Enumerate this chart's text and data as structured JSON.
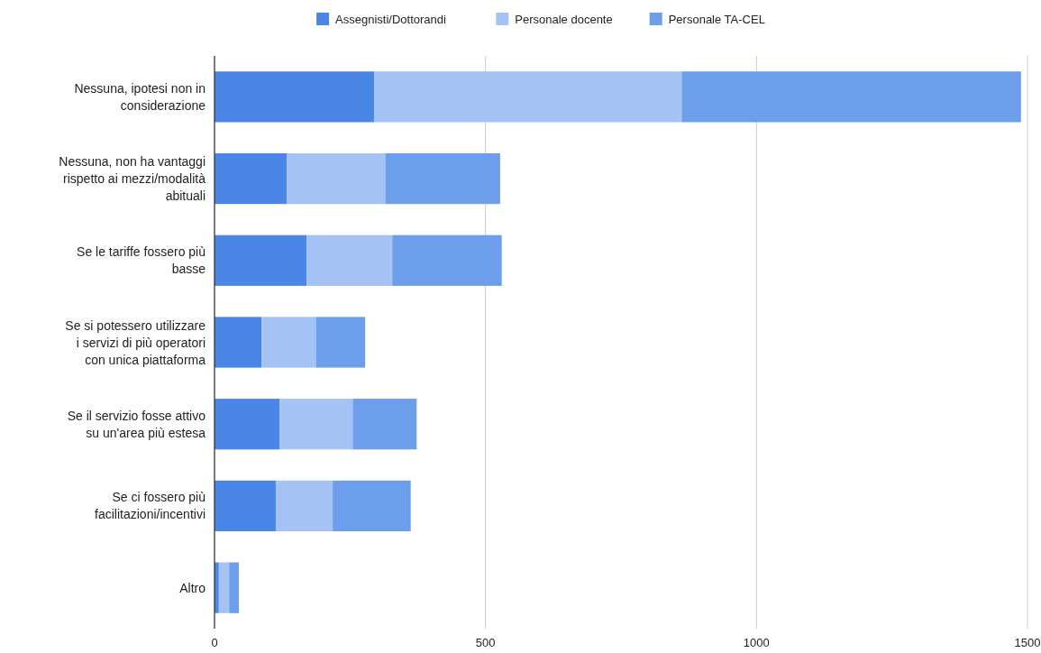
{
  "chart_data": {
    "type": "bar",
    "orientation": "horizontal",
    "stacked": true,
    "categories": [
      "Nessuna, ipotesi non in considerazione",
      "Nessuna, non ha vantaggi rispetto ai mezzi/modalità abituali",
      "Se le tariffe fossero più basse",
      "Se si potessero utilizzare i servizi di più operatori con unica piattaforma",
      "Se il servizio fosse attivo su un'area più estesa",
      "Se ci fossero più facilitazioni/incentivi",
      "Altro"
    ],
    "series": [
      {
        "name": "Assegnisti/Dottorandi",
        "color": "#4a86e8",
        "values": [
          295,
          133,
          170,
          87,
          120,
          113,
          8
        ]
      },
      {
        "name": "Personale docente",
        "color": "#a4c2f4",
        "values": [
          567,
          182,
          158,
          100,
          135,
          105,
          19
        ]
      },
      {
        "name": "Personale TA-CEL",
        "color": "#6d9eeb",
        "values": [
          626,
          212,
          202,
          91,
          118,
          144,
          18
        ]
      }
    ],
    "xlim": [
      0,
      1500
    ],
    "xticks": [
      0,
      500,
      1000,
      1500
    ],
    "grid": "x",
    "legend": "top"
  }
}
